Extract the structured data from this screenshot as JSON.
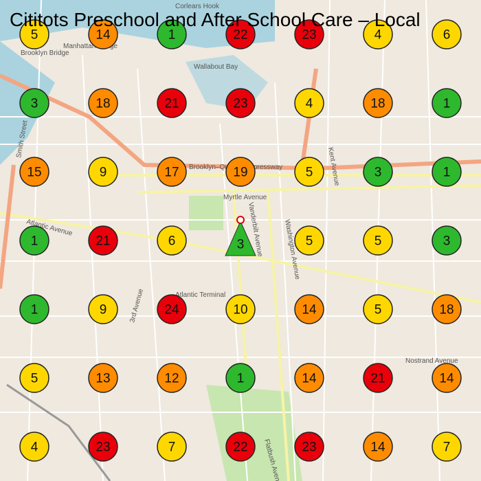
{
  "title": "Cititots Preschool and After School Care – Local",
  "business_marker": "triangle",
  "grid": [
    [
      {
        "rank": 5,
        "color": "#ffd700"
      },
      {
        "rank": 14,
        "color": "#ff8c00"
      },
      {
        "rank": 1,
        "color": "#2eb82e"
      },
      {
        "rank": 22,
        "color": "#e8000b"
      },
      {
        "rank": 23,
        "color": "#e8000b"
      },
      {
        "rank": 4,
        "color": "#ffd700"
      },
      {
        "rank": 6,
        "color": "#ffd700"
      }
    ],
    [
      {
        "rank": 3,
        "color": "#2eb82e"
      },
      {
        "rank": 18,
        "color": "#ff8c00"
      },
      {
        "rank": 21,
        "color": "#e8000b"
      },
      {
        "rank": 23,
        "color": "#e8000b"
      },
      {
        "rank": 4,
        "color": "#ffd700"
      },
      {
        "rank": 18,
        "color": "#ff8c00"
      },
      {
        "rank": 1,
        "color": "#2eb82e"
      }
    ],
    [
      {
        "rank": 15,
        "color": "#ff8c00"
      },
      {
        "rank": 9,
        "color": "#ffd700"
      },
      {
        "rank": 17,
        "color": "#ff8c00"
      },
      {
        "rank": 19,
        "color": "#ff8c00"
      },
      {
        "rank": 5,
        "color": "#ffd700"
      },
      {
        "rank": 3,
        "color": "#2eb82e"
      },
      {
        "rank": 1,
        "color": "#2eb82e"
      }
    ],
    [
      {
        "rank": 1,
        "color": "#2eb82e"
      },
      {
        "rank": 21,
        "color": "#e8000b"
      },
      {
        "rank": 6,
        "color": "#ffd700"
      },
      {
        "rank": 3,
        "color": "#2eb82e"
      },
      {
        "rank": 5,
        "color": "#ffd700"
      },
      {
        "rank": 5,
        "color": "#ffd700"
      },
      {
        "rank": 3,
        "color": "#2eb82e"
      }
    ],
    [
      {
        "rank": 1,
        "color": "#2eb82e"
      },
      {
        "rank": 9,
        "color": "#ffd700"
      },
      {
        "rank": 24,
        "color": "#e8000b"
      },
      {
        "rank": 10,
        "color": "#ffd700"
      },
      {
        "rank": 14,
        "color": "#ff8c00"
      },
      {
        "rank": 5,
        "color": "#ffd700"
      },
      {
        "rank": 18,
        "color": "#ff8c00"
      }
    ],
    [
      {
        "rank": 5,
        "color": "#ffd700"
      },
      {
        "rank": 13,
        "color": "#ff8c00"
      },
      {
        "rank": 12,
        "color": "#ff8c00"
      },
      {
        "rank": 1,
        "color": "#2eb82e"
      },
      {
        "rank": 14,
        "color": "#ff8c00"
      },
      {
        "rank": 21,
        "color": "#e8000b"
      },
      {
        "rank": 14,
        "color": "#ff8c00"
      }
    ],
    [
      {
        "rank": 4,
        "color": "#ffd700"
      },
      {
        "rank": 23,
        "color": "#e8000b"
      },
      {
        "rank": 7,
        "color": "#ffd700"
      },
      {
        "rank": 22,
        "color": "#e8000b"
      },
      {
        "rank": 23,
        "color": "#e8000b"
      },
      {
        "rank": 14,
        "color": "#ff8c00"
      },
      {
        "rank": 7,
        "color": "#ffd700"
      }
    ]
  ],
  "map_labels": [
    "Brooklyn Bridge",
    "Manhattan Bridge",
    "Corlears Hook",
    "Wallabout Bay",
    "Atlantic Avenue",
    "Myrtle Avenue",
    "Brooklyn–Queens Expressway",
    "Atlantic Terminal",
    "Nostrand Avenue",
    "Vanderbilt Avenue",
    "Washington Avenue",
    "Kent Avenue",
    "Smith Street",
    "3rd Avenue",
    "Flatbush Avenue"
  ]
}
